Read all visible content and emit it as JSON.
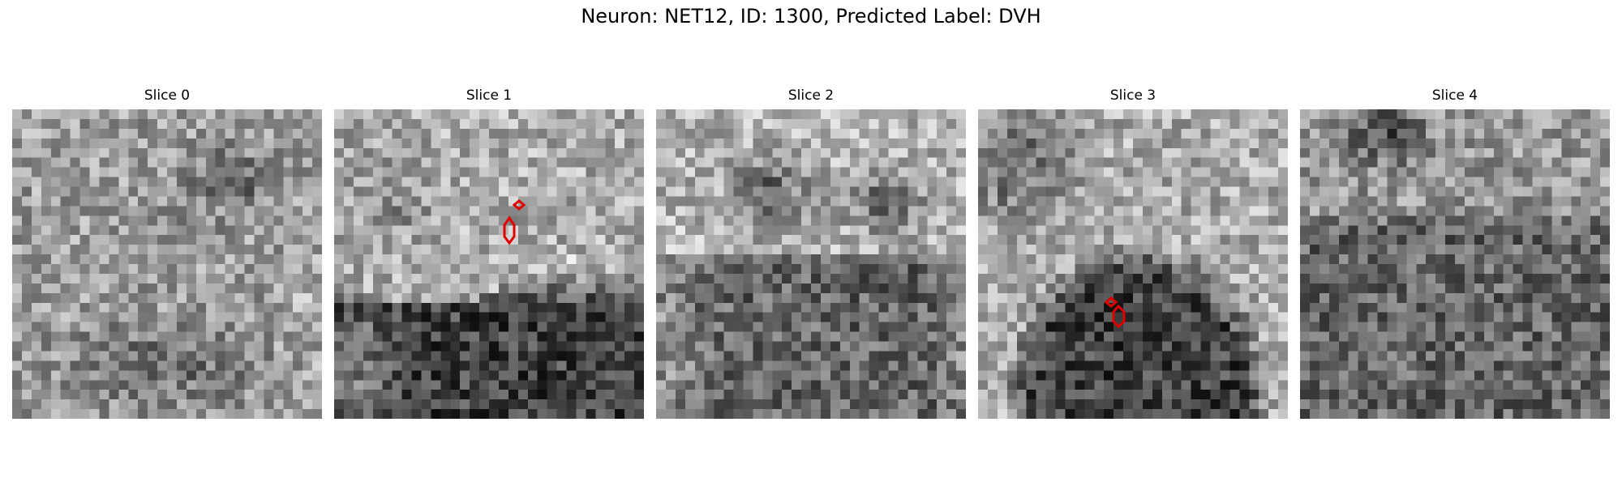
{
  "figure": {
    "title": "Neuron: NET12, ID: 1300, Predicted Label: DVH"
  },
  "panels": [
    {
      "title": "Slice 0"
    },
    {
      "title": "Slice 1"
    },
    {
      "title": "Slice 2"
    },
    {
      "title": "Slice 3"
    },
    {
      "title": "Slice 4"
    }
  ],
  "colors": {
    "contour": "#e00000",
    "colormap": "grayscale"
  }
}
